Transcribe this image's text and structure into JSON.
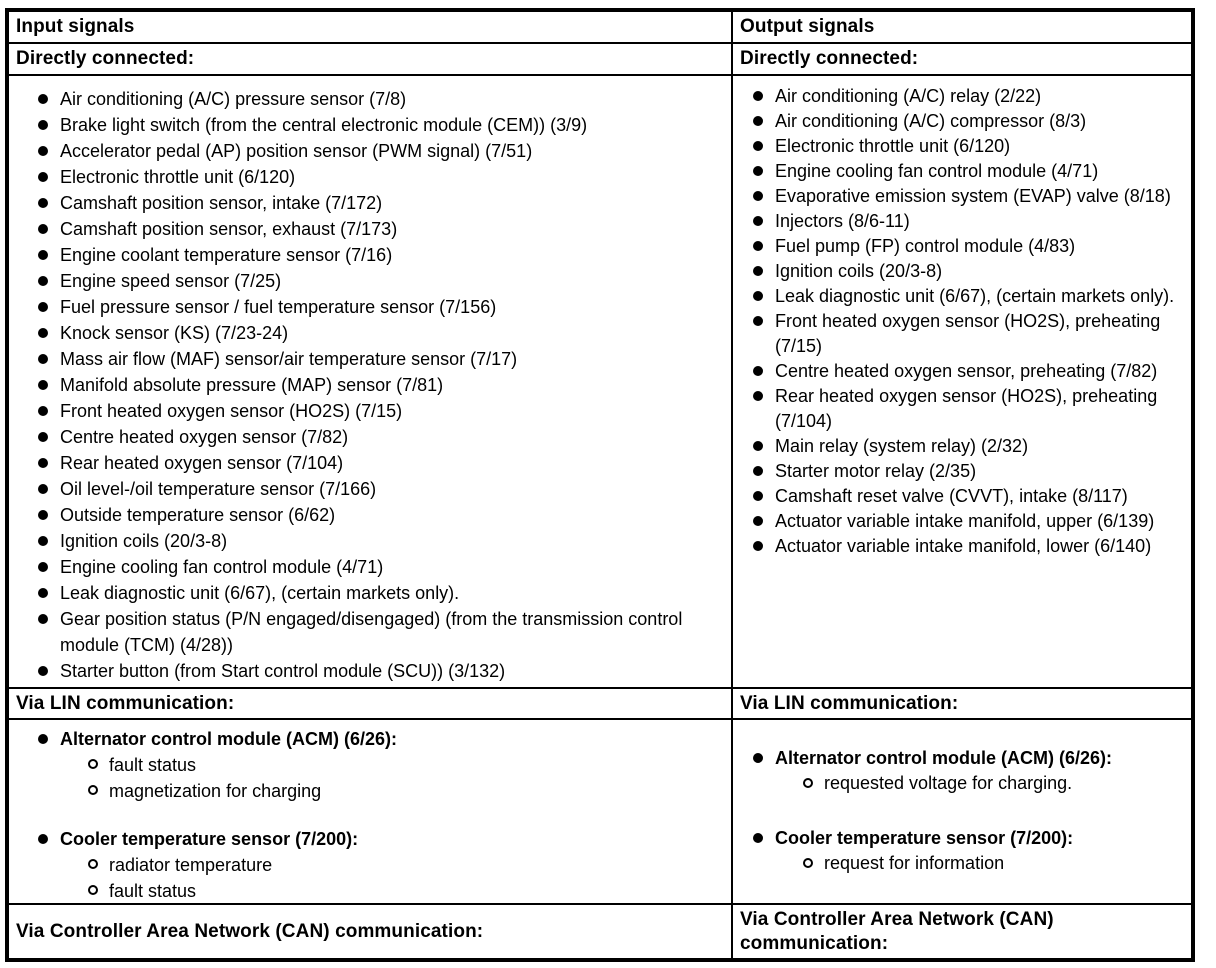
{
  "page": {
    "paper_color": "#ffffff",
    "ink_color": "#000000"
  },
  "table": {
    "columns": [
      {
        "header": "Input signals",
        "directly_connected_label": "Directly connected:",
        "directly_connected": [
          "Air conditioning (A/C) pressure sensor (7/8)",
          "Brake light switch (from the central electronic module (CEM)) (3/9)",
          "Accelerator pedal (AP) position sensor (PWM signal) (7/51)",
          "Electronic throttle unit (6/120)",
          "Camshaft position sensor, intake (7/172)",
          "Camshaft position sensor, exhaust (7/173)",
          "Engine coolant temperature sensor (7/16)",
          "Engine speed sensor (7/25)",
          "Fuel pressure sensor / fuel temperature sensor (7/156)",
          "Knock sensor (KS) (7/23-24)",
          "Mass air flow (MAF) sensor/air temperature sensor (7/17)",
          "Manifold absolute pressure (MAP) sensor (7/81)",
          "Front heated oxygen sensor (HO2S) (7/15)",
          "Centre heated oxygen sensor (7/82)",
          "Rear heated oxygen sensor (7/104)",
          "Oil level-/oil temperature sensor (7/166)",
          "Outside temperature sensor (6/62)",
          "Ignition coils (20/3-8)",
          "Engine cooling fan control module (4/71)",
          "Leak diagnostic unit (6/67), (certain markets only).",
          "Gear position status (P/N engaged/disengaged) (from the transmission control module (TCM) (4/28))",
          "Starter button (from Start control module (SCU)) (3/132)"
        ],
        "via_lin_label": "Via LIN communication:",
        "via_lin": [
          {
            "title": "Alternator control module (ACM) (6/26):",
            "subs": [
              "fault status",
              "magnetization for charging"
            ]
          },
          {
            "title": "Cooler temperature sensor (7/200):",
            "subs": [
              "radiator temperature",
              "fault status"
            ]
          }
        ],
        "via_can_label": "Via Controller Area Network (CAN) communication:"
      },
      {
        "header": "Output signals",
        "directly_connected_label": "Directly connected:",
        "directly_connected": [
          "Air conditioning (A/C) relay (2/22)",
          "Air conditioning (A/C) compressor (8/3)",
          "Electronic throttle unit (6/120)",
          "Engine cooling fan control module (4/71)",
          "Evaporative emission system (EVAP) valve (8/18)",
          "Injectors (8/6-11)",
          "Fuel pump (FP) control module (4/83)",
          "Ignition coils (20/3-8)",
          "Leak diagnostic unit (6/67), (certain markets only).",
          "Front heated oxygen sensor (HO2S), preheating (7/15)",
          "Centre heated oxygen sensor, preheating (7/82)",
          "Rear heated oxygen sensor (HO2S), preheating (7/104)",
          "Main relay (system relay) (2/32)",
          "Starter motor relay (2/35)",
          "Camshaft reset valve (CVVT), intake (8/117)",
          "Actuator variable intake manifold, upper (6/139)",
          "Actuator variable intake manifold, lower (6/140)"
        ],
        "via_lin_label": "Via LIN communication:",
        "via_lin": [
          {
            "title": "Alternator control module (ACM) (6/26):",
            "subs": [
              "requested voltage for charging."
            ]
          },
          {
            "title": "Cooler temperature sensor (7/200):",
            "subs": [
              "request for information"
            ]
          }
        ],
        "via_can_label": "Via Controller Area Network (CAN) communication:"
      }
    ]
  }
}
